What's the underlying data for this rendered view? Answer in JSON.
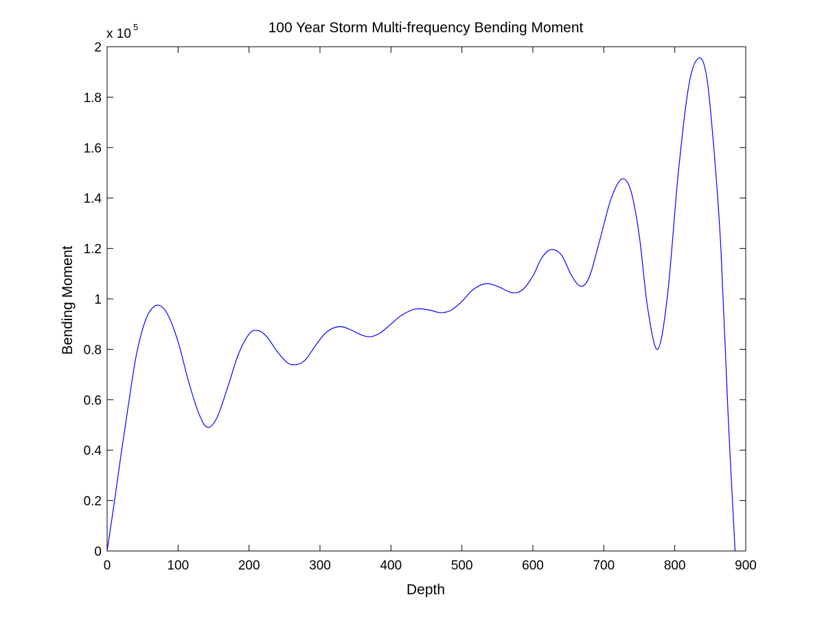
{
  "chart_data": {
    "type": "line",
    "title": "100 Year Storm Multi-frequency Bending Moment",
    "xlabel": "Depth",
    "ylabel": "Bending Moment",
    "y_exponent_label": "x 10",
    "y_exponent_power": "5",
    "xlim": [
      0,
      900
    ],
    "ylim": [
      0,
      2
    ],
    "y_scale_note": "values shown in units of 10^5",
    "x_ticks": [
      "0",
      "100",
      "200",
      "300",
      "400",
      "500",
      "600",
      "700",
      "800",
      "900"
    ],
    "y_ticks": [
      "0",
      "0.2",
      "0.4",
      "0.6",
      "0.8",
      "1",
      "1.2",
      "1.4",
      "1.6",
      "1.8",
      "2"
    ],
    "grid": false,
    "legend": "none",
    "series": [
      {
        "color": "#0000ff",
        "x": [
          0,
          10,
          20,
          30,
          40,
          50,
          60,
          72,
          85,
          100,
          115,
          130,
          142,
          155,
          170,
          185,
          200,
          212,
          225,
          240,
          255,
          268,
          280,
          295,
          310,
          328,
          345,
          360,
          372,
          385,
          400,
          415,
          435,
          455,
          470,
          485,
          500,
          515,
          533,
          550,
          570,
          585,
          600,
          612,
          625,
          640,
          655,
          668,
          680,
          695,
          710,
          725,
          738,
          750,
          762,
          776,
          790,
          805,
          820,
          834,
          845,
          855,
          865,
          875,
          885
        ],
        "y": [
          0,
          0.19,
          0.39,
          0.58,
          0.76,
          0.88,
          0.95,
          0.975,
          0.94,
          0.83,
          0.67,
          0.54,
          0.49,
          0.53,
          0.65,
          0.78,
          0.86,
          0.875,
          0.85,
          0.79,
          0.745,
          0.74,
          0.76,
          0.82,
          0.87,
          0.89,
          0.875,
          0.855,
          0.85,
          0.865,
          0.9,
          0.935,
          0.96,
          0.955,
          0.945,
          0.955,
          0.99,
          1.035,
          1.06,
          1.05,
          1.025,
          1.035,
          1.09,
          1.16,
          1.195,
          1.175,
          1.09,
          1.05,
          1.09,
          1.24,
          1.395,
          1.475,
          1.43,
          1.25,
          0.96,
          0.8,
          1.02,
          1.5,
          1.85,
          1.955,
          1.88,
          1.6,
          1.2,
          0.55,
          0
        ]
      }
    ]
  }
}
